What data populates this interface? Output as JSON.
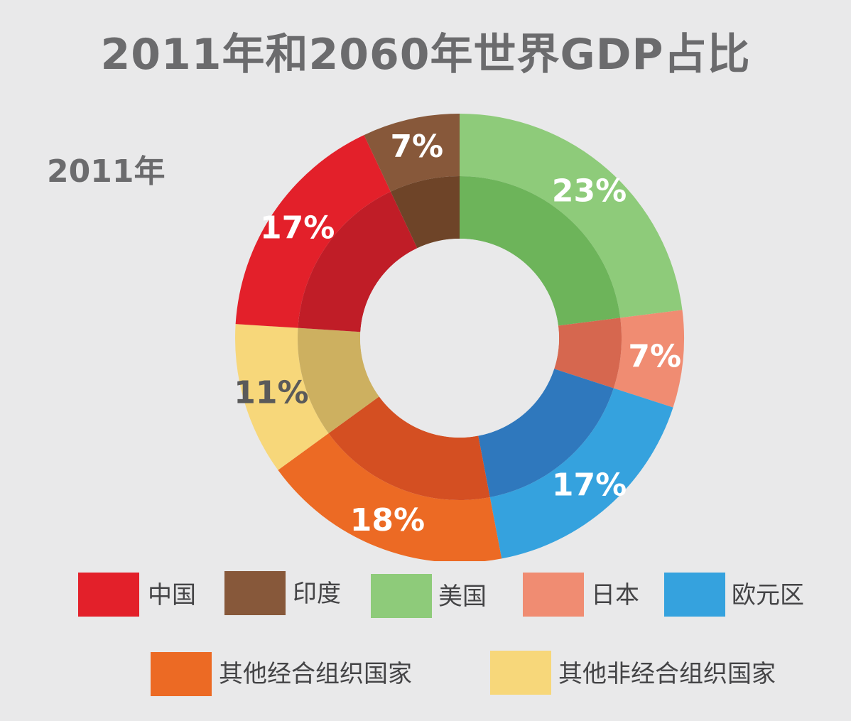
{
  "chart_data": {
    "type": "pie",
    "title": "2011年和2060年世界GDP占比",
    "subtitle": "2011年",
    "slices": [
      {
        "label": "美国",
        "value": 23,
        "value_label": "23%",
        "color": "#8ecb7a",
        "inner_color": "#6db45a",
        "text_color": "#ffffff"
      },
      {
        "label": "日本",
        "value": 7,
        "value_label": "7%",
        "color": "#f08c72",
        "inner_color": "#d6674f",
        "text_color": "#ffffff"
      },
      {
        "label": "欧元区",
        "value": 17,
        "value_label": "17%",
        "color": "#35a2de",
        "inner_color": "#2f78bd",
        "text_color": "#ffffff"
      },
      {
        "label": "其他经合组织国家",
        "value": 18,
        "value_label": "18%",
        "color": "#ec6a24",
        "inner_color": "#d44f22",
        "text_color": "#ffffff"
      },
      {
        "label": "其他非经合组织国家",
        "value": 11,
        "value_label": "11%",
        "color": "#f7d77a",
        "inner_color": "#cdb060",
        "text_color": "#5a5a5a"
      },
      {
        "label": "中国",
        "value": 17,
        "value_label": "17%",
        "color": "#e3202a",
        "inner_color": "#c01d27",
        "text_color": "#ffffff"
      },
      {
        "label": "印度",
        "value": 7,
        "value_label": "7%",
        "color": "#87583a",
        "inner_color": "#6e4428",
        "text_color": "#ffffff"
      }
    ]
  },
  "legend": {
    "items": [
      {
        "label": "中国",
        "color": "#e3202a"
      },
      {
        "label": "印度",
        "color": "#87583a"
      },
      {
        "label": "美国",
        "color": "#8ecb7a"
      },
      {
        "label": "日本",
        "color": "#f08c72"
      },
      {
        "label": "欧元区",
        "color": "#35a2de"
      },
      {
        "label": "其他经合组织国家",
        "color": "#ec6a24"
      },
      {
        "label": "其他非经合组织国家",
        "color": "#f7d77a"
      }
    ]
  },
  "colors": {
    "background": "#e9e9ea",
    "title": "#6b6b6d",
    "hole": "#e9e9ea"
  }
}
